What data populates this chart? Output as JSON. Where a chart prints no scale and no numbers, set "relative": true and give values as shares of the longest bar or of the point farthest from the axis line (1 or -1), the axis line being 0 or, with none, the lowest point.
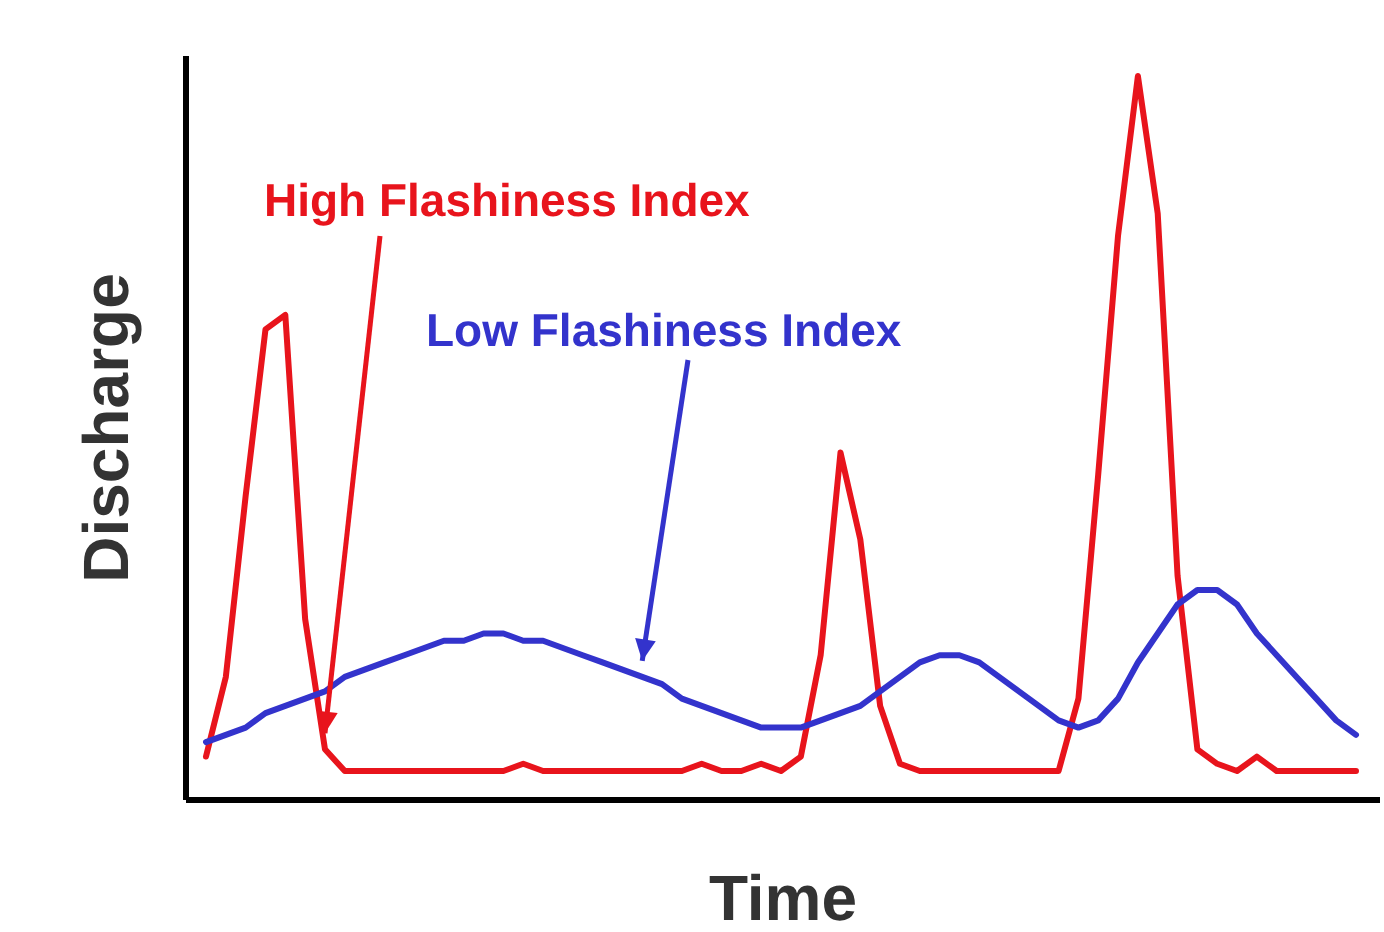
{
  "chart_data": {
    "type": "line",
    "relative": true,
    "xlabel": "Time",
    "ylabel": "Discharge",
    "categories": [
      null,
      null,
      null,
      null,
      null,
      null,
      null,
      null,
      null,
      null,
      null,
      null,
      null,
      null,
      null,
      null,
      null,
      null,
      null,
      null,
      null,
      null,
      null,
      null,
      null,
      null,
      null,
      null,
      null,
      null,
      null,
      null,
      null,
      null,
      null,
      null,
      null,
      null,
      null,
      null,
      null,
      null,
      null,
      null,
      null,
      null,
      null,
      null,
      null,
      null,
      null,
      null,
      null,
      null,
      null,
      null,
      null,
      null,
      null
    ],
    "marker": "none",
    "legend": false,
    "series": [
      {
        "name": "High Flashiness Index",
        "color": "#e8141c",
        "values": [
          0.06,
          0.17,
          0.42,
          0.65,
          0.67,
          0.25,
          0.07,
          0.04,
          0.04,
          0.04,
          0.04,
          0.04,
          0.04,
          0.04,
          0.04,
          0.04,
          0.05,
          0.04,
          0.04,
          0.04,
          0.04,
          0.04,
          0.04,
          0.04,
          0.04,
          0.05,
          0.04,
          0.04,
          0.05,
          0.04,
          0.06,
          0.2,
          0.48,
          0.36,
          0.13,
          0.05,
          0.04,
          0.04,
          0.04,
          0.04,
          0.04,
          0.04,
          0.04,
          0.04,
          0.14,
          0.45,
          0.78,
          1,
          0.81,
          0.31,
          0.07,
          0.05,
          0.04,
          0.06,
          0.04,
          0.04,
          0.04,
          0.04,
          0.04
        ]
      },
      {
        "name": "Low Flashiness Index",
        "color": "#3333cc",
        "values": [
          0.08,
          0.09,
          0.1,
          0.12,
          0.13,
          0.14,
          0.15,
          0.17,
          0.18,
          0.19,
          0.2,
          0.21,
          0.22,
          0.22,
          0.23,
          0.23,
          0.22,
          0.22,
          0.21,
          0.2,
          0.19,
          0.18,
          0.17,
          0.16,
          0.14,
          0.13,
          0.12,
          0.11,
          0.1,
          0.1,
          0.1,
          0.11,
          0.12,
          0.13,
          0.15,
          0.17,
          0.19,
          0.2,
          0.2,
          0.19,
          0.17,
          0.15,
          0.13,
          0.11,
          0.1,
          0.11,
          0.14,
          0.19,
          0.23,
          0.27,
          0.29,
          0.29,
          0.27,
          0.23,
          0.2,
          0.17,
          0.14,
          0.11,
          0.09
        ]
      }
    ]
  }
}
